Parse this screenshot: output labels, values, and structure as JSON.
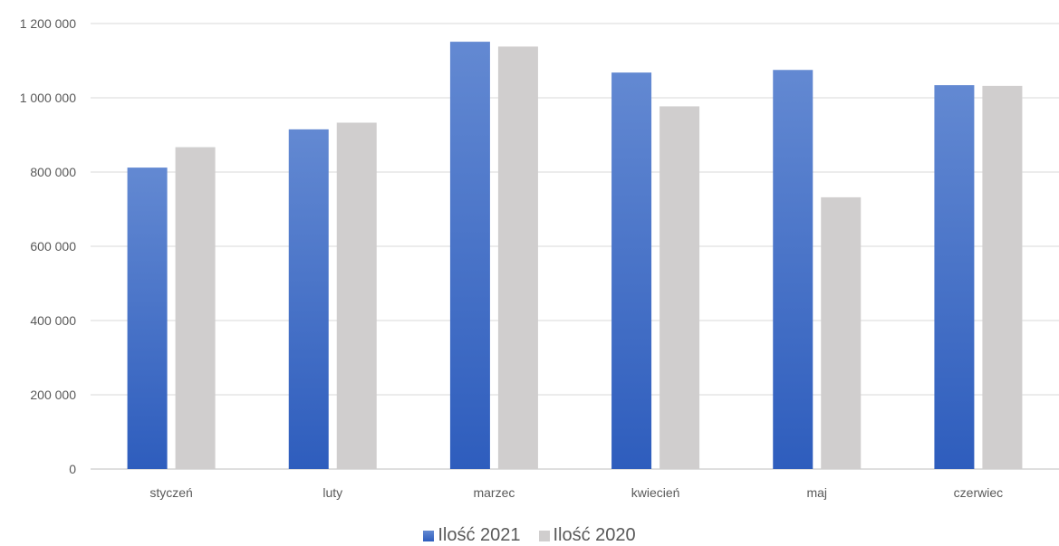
{
  "chart_data": {
    "type": "bar",
    "categories": [
      "styczeń",
      "luty",
      "marzec",
      "kwiecień",
      "maj",
      "czerwiec"
    ],
    "series": [
      {
        "name": "Ilość 2021",
        "values": [
          812000,
          915000,
          1151000,
          1068000,
          1075000,
          1034000
        ],
        "color": "#4472C4"
      },
      {
        "name": "Ilość 2020",
        "values": [
          867000,
          933000,
          1138000,
          977000,
          732000,
          1032000
        ],
        "color": "#D0CECE"
      }
    ],
    "y_ticks": [
      "0",
      "200 000",
      "400 000",
      "600 000",
      "800 000",
      "1 000 000",
      "1 200 000"
    ],
    "ylim": [
      0,
      1200000
    ],
    "grid": true,
    "legend_position": "bottom"
  }
}
